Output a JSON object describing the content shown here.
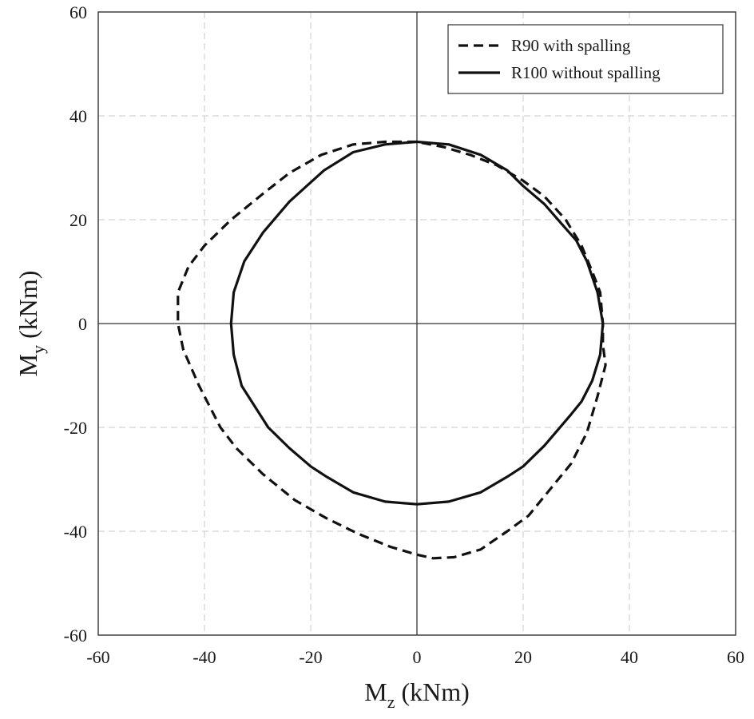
{
  "chart_data": {
    "type": "line",
    "title": "",
    "xlabel": {
      "main": "M",
      "sub": "z",
      "unit": " (kNm)"
    },
    "ylabel": {
      "main": "M",
      "sub": "y",
      "unit": " (kNm)"
    },
    "xlim": [
      -60,
      60
    ],
    "ylim": [
      -60,
      60
    ],
    "xticks": [
      -60,
      -40,
      -20,
      0,
      20,
      40,
      60
    ],
    "yticks": [
      -60,
      -40,
      -20,
      0,
      20,
      40,
      60
    ],
    "xtick_labels": [
      "-60",
      "-40",
      "-20",
      "0",
      "20",
      "40",
      "60"
    ],
    "ytick_labels": [
      "-60",
      "-40",
      "-20",
      "0",
      "20",
      "40",
      "60"
    ],
    "grid": true,
    "legend_position": "top-right",
    "series": [
      {
        "name": "R90 with spalling",
        "style": "dashed",
        "color": "#111111",
        "points": [
          [
            0,
            35
          ],
          [
            -6,
            35
          ],
          [
            -12,
            34.5
          ],
          [
            -18,
            32.5
          ],
          [
            -24,
            29
          ],
          [
            -29,
            25
          ],
          [
            -35,
            20
          ],
          [
            -40,
            15
          ],
          [
            -43,
            11
          ],
          [
            -45,
            6
          ],
          [
            -45,
            0
          ],
          [
            -44,
            -5
          ],
          [
            -41,
            -12
          ],
          [
            -37,
            -20
          ],
          [
            -34,
            -24
          ],
          [
            -29,
            -29
          ],
          [
            -23,
            -34
          ],
          [
            -17,
            -37.5
          ],
          [
            -11,
            -40.5
          ],
          [
            -5,
            -43
          ],
          [
            0,
            -44.5
          ],
          [
            3,
            -45.2
          ],
          [
            7,
            -45
          ],
          [
            12,
            -43.5
          ],
          [
            17,
            -40
          ],
          [
            21,
            -37
          ],
          [
            25,
            -32
          ],
          [
            29,
            -27
          ],
          [
            32,
            -21
          ],
          [
            34,
            -14
          ],
          [
            35.5,
            -8
          ],
          [
            35,
            -4
          ],
          [
            35,
            0
          ],
          [
            34.5,
            6
          ],
          [
            33,
            10
          ],
          [
            31,
            15
          ],
          [
            28,
            20
          ],
          [
            24,
            24.5
          ],
          [
            20,
            27.5
          ],
          [
            15,
            30.5
          ],
          [
            10,
            32.5
          ],
          [
            5,
            34
          ],
          [
            0,
            35
          ]
        ]
      },
      {
        "name": "R100 without spalling",
        "style": "solid",
        "color": "#111111",
        "points": [
          [
            0,
            35
          ],
          [
            6,
            34.5
          ],
          [
            12,
            32.5
          ],
          [
            17,
            29.5
          ],
          [
            20,
            26.5
          ],
          [
            24,
            23
          ],
          [
            27,
            19.5
          ],
          [
            30,
            16
          ],
          [
            32,
            12
          ],
          [
            34,
            6
          ],
          [
            35,
            0
          ],
          [
            34.5,
            -6
          ],
          [
            33,
            -11
          ],
          [
            31,
            -15
          ],
          [
            29,
            -17.5
          ],
          [
            24,
            -23.5
          ],
          [
            20,
            -27.5
          ],
          [
            17,
            -29.5
          ],
          [
            12,
            -32.5
          ],
          [
            6,
            -34.3
          ],
          [
            0,
            -34.8
          ],
          [
            -6,
            -34.3
          ],
          [
            -12,
            -32.5
          ],
          [
            -17,
            -29.5
          ],
          [
            -20,
            -27.5
          ],
          [
            -24,
            -24
          ],
          [
            -28,
            -20
          ],
          [
            -33,
            -12
          ],
          [
            -34.5,
            -6
          ],
          [
            -35,
            0
          ],
          [
            -34.5,
            6
          ],
          [
            -32.5,
            12
          ],
          [
            -29,
            17.5
          ],
          [
            -24,
            23.5
          ],
          [
            -17.5,
            29.5
          ],
          [
            -12,
            33
          ],
          [
            -6,
            34.5
          ],
          [
            0,
            35
          ]
        ]
      }
    ]
  }
}
